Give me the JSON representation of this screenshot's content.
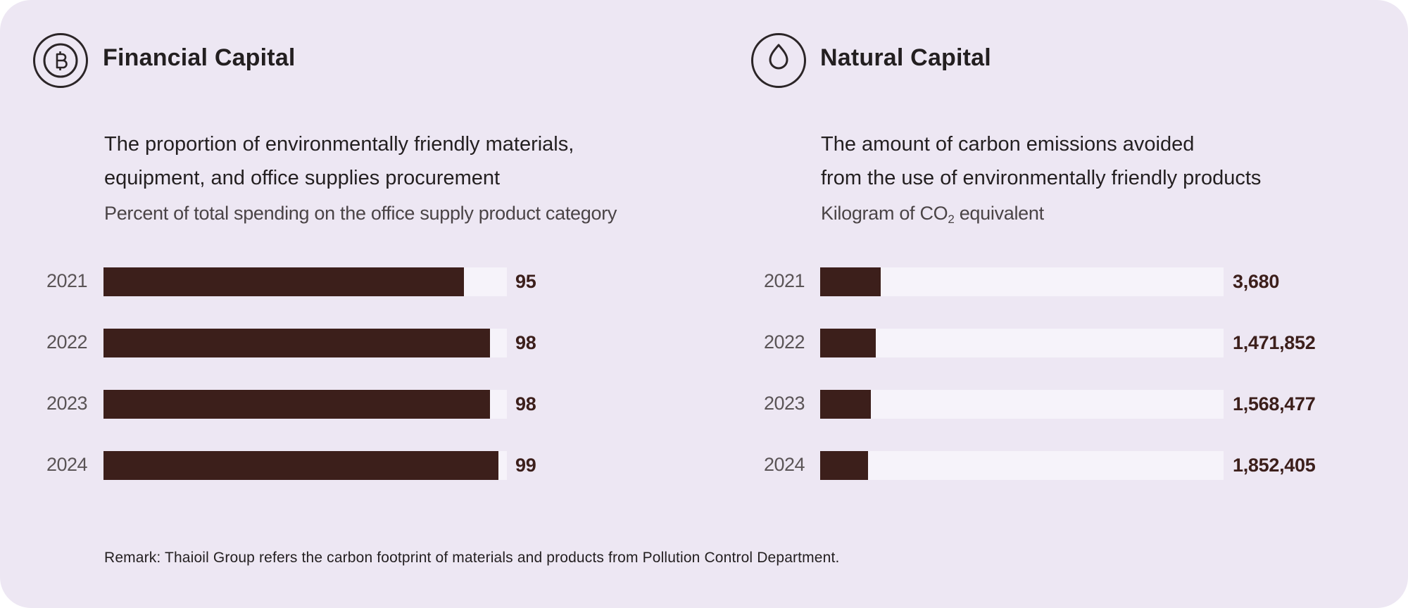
{
  "colors": {
    "background": "#ede7f3",
    "bar_fill": "#3c1f1b",
    "bar_track": "#f6f3fa",
    "title_text": "#231f20",
    "value_text": "#3c1f1b"
  },
  "sections": [
    {
      "title": "Financial Capital",
      "icon": "baht-coin-icon",
      "heading_lines": [
        "The proportion of environmentally friendly materials,",
        "equipment, and office supplies procurement"
      ],
      "unit_label": "Percent of total spending on the office supply product category"
    },
    {
      "title": "Natural Capital",
      "icon": "water-drop-icon",
      "heading_lines": [
        "The amount of carbon emissions avoided",
        "from the use of environmentally friendly products"
      ],
      "unit_label_parts": [
        "Kilogram of CO",
        "2",
        " equivalent"
      ]
    }
  ],
  "chart_data": [
    {
      "type": "bar",
      "orientation": "horizontal",
      "title": "The proportion of environmentally friendly materials, equipment, and office supplies procurement",
      "xlabel": "Percent of total spending on the office supply product category",
      "ylabel": "",
      "categories": [
        "2021",
        "2022",
        "2023",
        "2024"
      ],
      "values": [
        95,
        98,
        98,
        99
      ],
      "value_labels": [
        "95",
        "98",
        "98",
        "99"
      ],
      "fill_fraction": [
        0.894,
        0.958,
        0.958,
        0.979
      ],
      "grid": false,
      "legend": "none"
    },
    {
      "type": "bar",
      "orientation": "horizontal",
      "title": "The amount of carbon emissions avoided from the use of environmentally friendly products",
      "xlabel": "Kilogram of CO2 equivalent",
      "ylabel": "",
      "categories": [
        "2021",
        "2022",
        "2023",
        "2024"
      ],
      "values": [
        3680,
        1471852,
        1568477,
        1852405
      ],
      "value_labels": [
        "3,680",
        "1,471,852",
        "1,568,477",
        "1,852,405"
      ],
      "fill_fraction": [
        0.15,
        0.138,
        0.126,
        0.119
      ],
      "grid": false,
      "legend": "none"
    }
  ],
  "remark": "Remark: Thaioil Group refers the carbon footprint of materials and products from Pollution Control Department."
}
